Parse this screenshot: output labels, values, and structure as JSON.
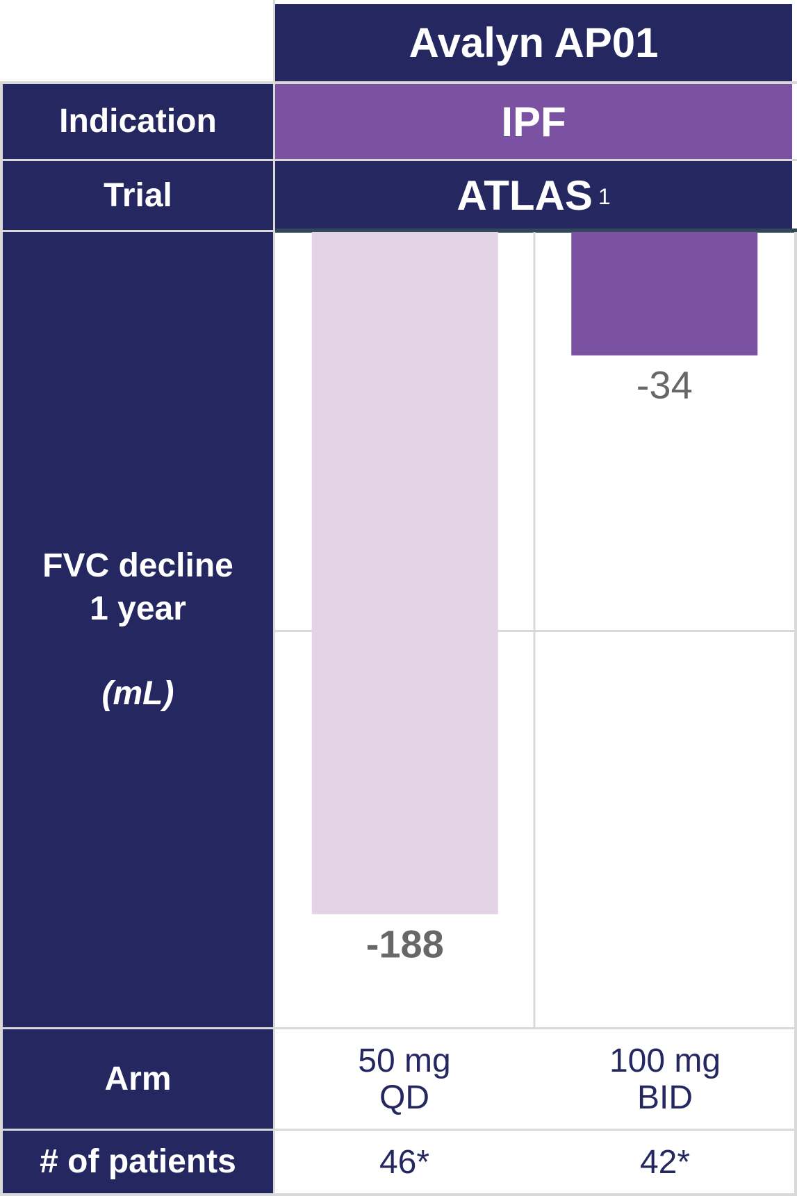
{
  "header": {
    "title": "Avalyn AP01"
  },
  "rows": {
    "indication": {
      "label": "Indication",
      "value": "IPF"
    },
    "trial": {
      "label": "Trial",
      "value": "ATLAS",
      "footnote": "1"
    },
    "fvc": {
      "label_line1": "FVC decline",
      "label_line2": "1 year",
      "unit": "(mL)"
    },
    "arm": {
      "label": "Arm",
      "values": [
        {
          "line1": "50 mg",
          "line2": "QD"
        },
        {
          "line1": "100 mg",
          "line2": "BID"
        }
      ]
    },
    "patients": {
      "label": "# of patients",
      "values": [
        "46*",
        "42*"
      ]
    }
  },
  "chart_data": {
    "type": "bar",
    "categories": [
      "50 mg QD",
      "100 mg BID"
    ],
    "values": [
      -188,
      -34
    ],
    "data_labels": [
      "-188",
      "-34"
    ],
    "colors": [
      "#e4d3e7",
      "#7b52a1"
    ],
    "label_colors": [
      "#676767",
      "#676767"
    ],
    "label_bold": [
      true,
      false
    ],
    "ylim": [
      -200,
      0
    ],
    "grid": true
  },
  "colors": {
    "navy": "#242760",
    "purple": "#7b52a1",
    "grid": "#d9d9d9"
  }
}
